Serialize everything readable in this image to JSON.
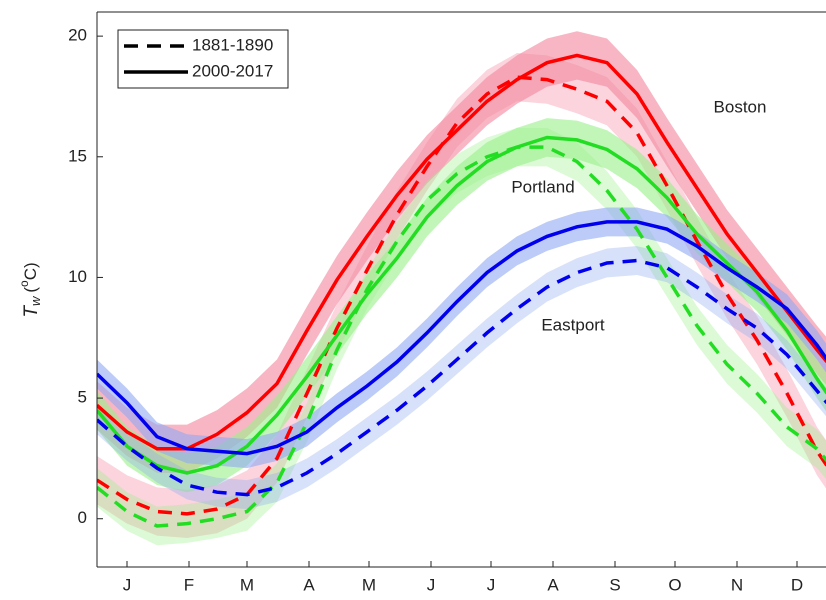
{
  "chart_data": {
    "type": "line",
    "ylabel": {
      "main": "T",
      "sub": "w",
      "pre": "(",
      "sup": "o",
      "post": "C)"
    },
    "xlim": [
      0,
      365
    ],
    "ylim": [
      -2,
      21
    ],
    "yticks": [
      0,
      5,
      10,
      15,
      20
    ],
    "xticks": [
      {
        "value": 15,
        "label": "J"
      },
      {
        "value": 46,
        "label": "F"
      },
      {
        "value": 75,
        "label": "M"
      },
      {
        "value": 106,
        "label": "A"
      },
      {
        "value": 136,
        "label": "M"
      },
      {
        "value": 167,
        "label": "J"
      },
      {
        "value": 197,
        "label": "J"
      },
      {
        "value": 228,
        "label": "A"
      },
      {
        "value": 259,
        "label": "S"
      },
      {
        "value": 289,
        "label": "O"
      },
      {
        "value": 320,
        "label": "N"
      },
      {
        "value": 350,
        "label": "D"
      }
    ],
    "grid": false,
    "legend_position": "upper left",
    "legend": [
      {
        "label": "1881-1890",
        "dashed": true
      },
      {
        "label": "2000-2017",
        "dashed": false
      }
    ],
    "x": [
      0,
      15,
      30,
      45,
      60,
      75,
      90,
      105,
      120,
      135,
      150,
      165,
      180,
      195,
      210,
      225,
      240,
      255,
      270,
      285,
      300,
      315,
      330,
      345,
      360,
      365
    ],
    "series": [
      {
        "name": "Boston",
        "color": "#ff0000",
        "band_color": "#f4859d",
        "band": 1.0,
        "values": [
          [
            1.6,
            0.8,
            0.3,
            0.2,
            0.4,
            1.0,
            2.5,
            5.2,
            7.9,
            10.3,
            12.6,
            14.6,
            16.4,
            17.6,
            18.3,
            18.2,
            17.8,
            17.3,
            16.0,
            13.8,
            11.5,
            9.3,
            7.4,
            5.2,
            2.8,
            2.2
          ],
          [
            4.7,
            3.6,
            2.9,
            2.9,
            3.5,
            4.4,
            5.6,
            7.8,
            9.9,
            11.7,
            13.4,
            14.9,
            16.1,
            17.3,
            18.2,
            18.9,
            19.2,
            18.9,
            17.6,
            15.6,
            13.7,
            11.8,
            10.2,
            8.6,
            7.0,
            6.5
          ]
        ]
      },
      {
        "name": "Portland",
        "color": "#22dd22",
        "band_color": "#9af08a",
        "band": 0.8,
        "values": [
          [
            1.3,
            0.3,
            -0.3,
            -0.2,
            0.0,
            0.3,
            1.5,
            4.0,
            7.0,
            9.5,
            11.5,
            13.2,
            14.3,
            15.0,
            15.4,
            15.4,
            14.8,
            13.6,
            12.0,
            10.0,
            8.0,
            6.4,
            5.2,
            3.8,
            2.9,
            2.4
          ],
          [
            4.5,
            3.0,
            2.2,
            1.9,
            2.2,
            3.0,
            4.3,
            5.9,
            7.6,
            9.3,
            10.8,
            12.5,
            13.8,
            14.8,
            15.4,
            15.8,
            15.7,
            15.3,
            14.5,
            13.3,
            11.8,
            10.6,
            9.4,
            7.8,
            5.8,
            5.2
          ]
        ]
      },
      {
        "name": "Eastport",
        "color": "#0000ee",
        "band_color": "#8fa8f2",
        "band": 0.6,
        "values": [
          [
            4.1,
            3.0,
            2.1,
            1.4,
            1.1,
            1.0,
            1.3,
            1.9,
            2.7,
            3.6,
            4.5,
            5.5,
            6.6,
            7.7,
            8.7,
            9.6,
            10.2,
            10.6,
            10.7,
            10.4,
            9.6,
            8.7,
            7.9,
            6.8,
            5.3,
            4.8
          ],
          [
            6.0,
            4.8,
            3.4,
            2.9,
            2.8,
            2.7,
            3.0,
            3.6,
            4.6,
            5.5,
            6.5,
            7.7,
            9.0,
            10.2,
            11.1,
            11.7,
            12.1,
            12.3,
            12.3,
            12.0,
            11.3,
            10.4,
            9.6,
            8.7,
            7.2,
            6.6
          ]
        ]
      }
    ]
  }
}
